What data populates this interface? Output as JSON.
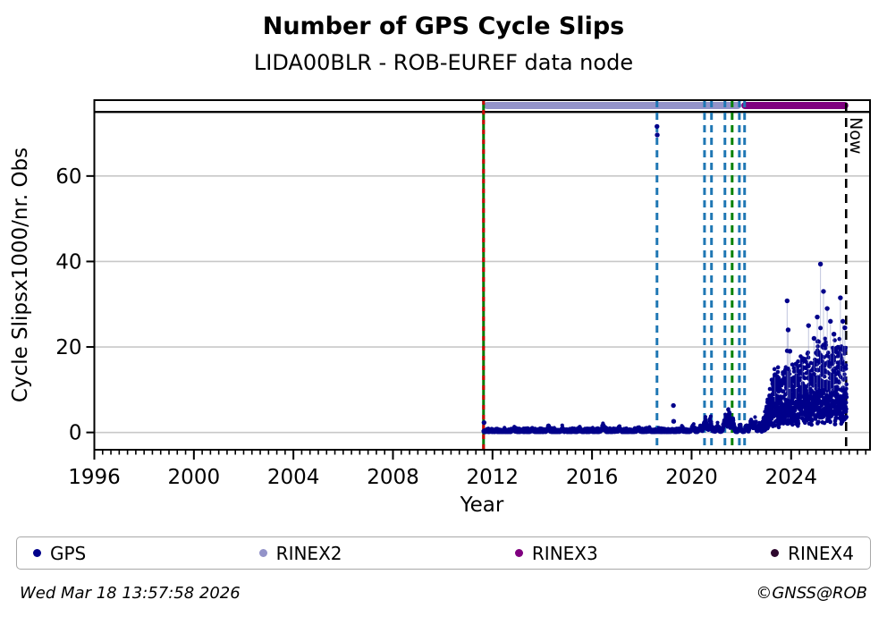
{
  "header": {
    "title": "Number of GPS Cycle Slips",
    "subtitle": "LIDA00BLR - ROB-EUREF data node"
  },
  "chart_data": {
    "type": "scatter",
    "title": "Number of GPS Cycle Slips",
    "subtitle": "LIDA00BLR - ROB-EUREF data node",
    "xlabel": "Year",
    "ylabel": "Cycle Slipsx1000/nr. Obs",
    "xlim": [
      1996,
      2027.17
    ],
    "ylim": [
      -4.05,
      77.75
    ],
    "xticks": [
      1996,
      2000,
      2004,
      2008,
      2012,
      2016,
      2020,
      2024
    ],
    "x_minor_step": 0.3333333,
    "yticks": [
      0,
      20,
      40,
      60
    ],
    "grid": "horizontal",
    "grid_color": "#c8c8c8",
    "threshold_line_y": 75,
    "frame_color": "#000000",
    "rinex_bars": [
      {
        "label": "RINEX2",
        "start": 2011.64,
        "end": 2022.0,
        "color": "#9393c9"
      },
      {
        "label": "RINEX3",
        "start": 2022.0,
        "end": 2026.3,
        "color": "#800080"
      }
    ],
    "event_lines": [
      {
        "x": 2011.64,
        "color": "#007a00",
        "style": "solid",
        "overlay_color": "#cc0000",
        "name": "data-start-line"
      },
      {
        "x": 2018.61,
        "color": "#1f77b4",
        "style": "dashed",
        "name": "event-line"
      },
      {
        "x": 2020.52,
        "color": "#1f77b4",
        "style": "dashed",
        "name": "event-line"
      },
      {
        "x": 2020.8,
        "color": "#1f77b4",
        "style": "dashed",
        "name": "event-line"
      },
      {
        "x": 2021.34,
        "color": "#1f77b4",
        "style": "dashed",
        "name": "event-line"
      },
      {
        "x": 2021.63,
        "color": "#008000",
        "style": "dashed",
        "name": "event-line"
      },
      {
        "x": 2021.92,
        "color": "#1f77b4",
        "style": "dashed",
        "name": "event-line"
      },
      {
        "x": 2022.13,
        "color": "#1f77b4",
        "style": "dashed",
        "name": "event-line"
      }
    ],
    "now_line": {
      "x": 2026.21,
      "color": "#000000",
      "style": "dashed",
      "label": "Now"
    },
    "gps_scatter": {
      "series_name": "GPS",
      "color": "#00008B",
      "marker_radius": 2.1,
      "seed": 42,
      "baseline": {
        "x0": 2011.63,
        "x1": 2022.82,
        "step": 0.005,
        "max": 1.1
      },
      "bumps": [
        [
          2012.85,
          0.9,
          0.05
        ],
        [
          2013.6,
          0.7,
          0.05
        ],
        [
          2014.25,
          1.3,
          0.05
        ],
        [
          2014.8,
          0.8,
          0.04
        ],
        [
          2015.5,
          0.7,
          0.05
        ],
        [
          2016.45,
          1.6,
          0.07
        ],
        [
          2017.1,
          0.8,
          0.05
        ],
        [
          2017.85,
          0.9,
          0.05
        ],
        [
          2018.3,
          0.7,
          0.04
        ],
        [
          2019.6,
          0.8,
          0.05
        ],
        [
          2020.05,
          1.6,
          0.06
        ],
        [
          2020.35,
          1.3,
          0.06
        ],
        [
          2020.55,
          3.6,
          0.08
        ],
        [
          2020.75,
          3.0,
          0.07
        ],
        [
          2021.05,
          1.6,
          0.06
        ],
        [
          2021.35,
          4.6,
          0.08
        ],
        [
          2021.5,
          5.6,
          0.07
        ],
        [
          2021.65,
          3.6,
          0.06
        ],
        [
          2021.95,
          1.6,
          0.05
        ],
        [
          2022.2,
          1.3,
          0.05
        ],
        [
          2022.4,
          3.0,
          0.07
        ],
        [
          2022.55,
          2.6,
          0.06
        ],
        [
          2022.72,
          1.8,
          0.05
        ]
      ],
      "cluster": {
        "x0": 2022.82,
        "x1": 2026.23,
        "step": 0.0028,
        "body": [
          [
            2022.82,
            1.2
          ],
          [
            2022.95,
            2.5
          ],
          [
            2023.1,
            5.0
          ],
          [
            2023.25,
            7.5
          ],
          [
            2023.45,
            8.5
          ],
          [
            2023.6,
            7.0
          ],
          [
            2023.8,
            9.0
          ],
          [
            2024.0,
            8.5
          ],
          [
            2024.2,
            9.0
          ],
          [
            2024.5,
            10.0
          ],
          [
            2024.8,
            10.5
          ],
          [
            2025.0,
            11.0
          ],
          [
            2025.3,
            11.5
          ],
          [
            2025.6,
            10.5
          ],
          [
            2025.9,
            11.5
          ],
          [
            2026.23,
            11.5
          ]
        ]
      },
      "spikes": [
        [
          2023.35,
          13.5
        ],
        [
          2023.84,
          30.8
        ],
        [
          2023.88,
          24.0
        ],
        [
          2023.95,
          19.0
        ],
        [
          2024.2,
          16.0
        ],
        [
          2024.45,
          17.0
        ],
        [
          2024.7,
          25.0
        ],
        [
          2024.92,
          22.0
        ],
        [
          2025.05,
          27.0
        ],
        [
          2025.18,
          39.4
        ],
        [
          2025.3,
          33.0
        ],
        [
          2025.45,
          29.0
        ],
        [
          2025.58,
          26.0
        ],
        [
          2025.72,
          23.0
        ],
        [
          2025.98,
          31.5
        ],
        [
          2026.08,
          26.0
        ],
        [
          2026.16,
          24.5
        ]
      ],
      "outliers": [
        [
          2011.66,
          2.3
        ],
        [
          2018.61,
          71.6
        ],
        [
          2018.62,
          69.6
        ],
        [
          2019.27,
          6.3
        ],
        [
          2019.28,
          2.6
        ]
      ]
    }
  },
  "legend": {
    "items": [
      {
        "label": "GPS",
        "color": "#00008B"
      },
      {
        "label": "RINEX2",
        "color": "#9393c9"
      },
      {
        "label": "RINEX3",
        "color": "#800080"
      },
      {
        "label": "RINEX4",
        "color": "#2e082e"
      }
    ]
  },
  "footer": {
    "timestamp": "Wed Mar 18 13:57:58 2026",
    "credit": "©GNSS@ROB"
  }
}
